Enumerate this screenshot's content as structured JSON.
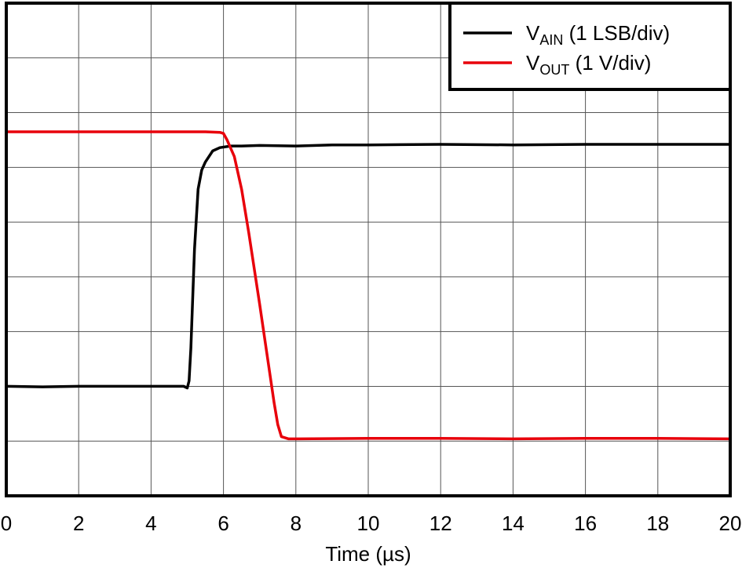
{
  "chart_data": {
    "type": "line",
    "xlabel": "Time (µs)",
    "xlim": [
      0,
      20
    ],
    "ylim": [
      0,
      9
    ],
    "x_ticks": [
      "0",
      "2",
      "4",
      "6",
      "8",
      "10",
      "12",
      "14",
      "16",
      "18",
      "20"
    ],
    "y_divisions": 9,
    "grid": true,
    "legend_position": "top-right",
    "series": [
      {
        "name": "VAIN (1 LSB/div)",
        "name_main": "V",
        "name_sub": "AIN",
        "name_rest": " (1 LSB/div)",
        "color": "#000000",
        "x": [
          0,
          1,
          2,
          3,
          4,
          4.9,
          5.0,
          5.05,
          5.1,
          5.2,
          5.3,
          5.4,
          5.5,
          5.7,
          5.9,
          6.2,
          6.5,
          7,
          8,
          9,
          10,
          12,
          14,
          16,
          18,
          20
        ],
        "y": [
          2.0,
          1.99,
          2.0,
          2.0,
          2.0,
          2.0,
          1.97,
          2.1,
          2.7,
          4.5,
          5.6,
          5.95,
          6.1,
          6.3,
          6.36,
          6.39,
          6.39,
          6.4,
          6.39,
          6.41,
          6.41,
          6.42,
          6.41,
          6.42,
          6.42,
          6.42
        ]
      },
      {
        "name": "VOUT (1 V/div)",
        "name_main": "V",
        "name_sub": "OUT",
        "name_rest": " (1 V/div)",
        "color": "#e8000b",
        "x": [
          0,
          2,
          4,
          5.5,
          5.9,
          6.0,
          6.1,
          6.3,
          6.5,
          6.7,
          7.0,
          7.2,
          7.4,
          7.5,
          7.6,
          7.8,
          8,
          10,
          12,
          14,
          16,
          18,
          20
        ],
        "y": [
          6.65,
          6.65,
          6.65,
          6.65,
          6.64,
          6.62,
          6.5,
          6.2,
          5.6,
          4.8,
          3.5,
          2.6,
          1.7,
          1.3,
          1.08,
          1.04,
          1.04,
          1.05,
          1.05,
          1.04,
          1.05,
          1.05,
          1.04
        ]
      }
    ]
  }
}
